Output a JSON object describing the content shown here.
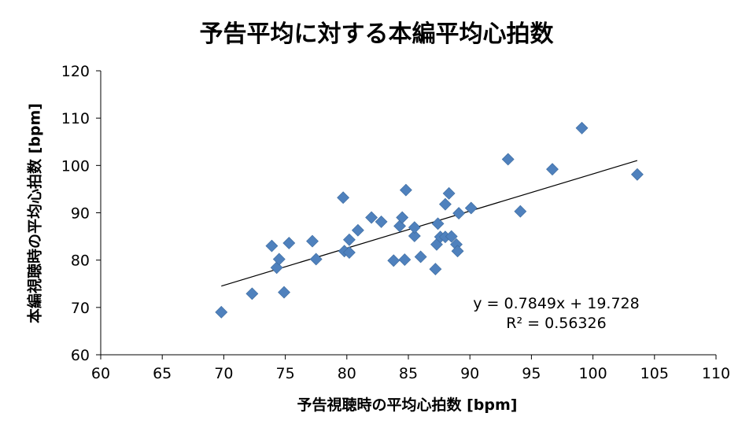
{
  "chart_data": {
    "type": "scatter",
    "title": "予告平均に対する本編平均心拍数",
    "xlabel": "予告視聴時の平均心拍数 [bpm]",
    "ylabel": "本編視聴時の平均心拍数 [bpm]",
    "xlim": [
      60,
      110
    ],
    "ylim": [
      60,
      120
    ],
    "x_ticks": [
      "60",
      "65",
      "70",
      "75",
      "80",
      "85",
      "90",
      "95",
      "100",
      "105",
      "110"
    ],
    "y_ticks": [
      "60",
      "70",
      "80",
      "90",
      "100",
      "110",
      "120"
    ],
    "grid": false,
    "legend": "none",
    "marker_color": "#4F81BD",
    "series": [
      {
        "points": [
          [
            69.8,
            69.0
          ],
          [
            72.3,
            72.9
          ],
          [
            73.9,
            83.0
          ],
          [
            74.3,
            78.4
          ],
          [
            74.5,
            80.2
          ],
          [
            74.9,
            73.2
          ],
          [
            75.3,
            83.6
          ],
          [
            77.2,
            84.0
          ],
          [
            77.5,
            80.2
          ],
          [
            79.7,
            93.2
          ],
          [
            79.8,
            81.9
          ],
          [
            80.2,
            84.3
          ],
          [
            80.2,
            81.6
          ],
          [
            80.9,
            86.3
          ],
          [
            82.0,
            89.0
          ],
          [
            82.8,
            88.1
          ],
          [
            83.8,
            79.9
          ],
          [
            84.3,
            87.2
          ],
          [
            84.5,
            89.0
          ],
          [
            84.7,
            80.1
          ],
          [
            84.8,
            94.8
          ],
          [
            85.5,
            85.1
          ],
          [
            85.5,
            86.9
          ],
          [
            86.0,
            80.7
          ],
          [
            87.2,
            78.1
          ],
          [
            87.3,
            83.3
          ],
          [
            87.4,
            87.7
          ],
          [
            87.6,
            84.9
          ],
          [
            88.0,
            91.8
          ],
          [
            88.0,
            84.9
          ],
          [
            88.3,
            94.1
          ],
          [
            88.5,
            85.0
          ],
          [
            88.9,
            83.3
          ],
          [
            89.0,
            81.9
          ],
          [
            89.1,
            89.9
          ],
          [
            90.1,
            91.0
          ],
          [
            93.1,
            101.3
          ],
          [
            94.1,
            90.3
          ],
          [
            96.7,
            99.2
          ],
          [
            99.1,
            107.9
          ],
          [
            103.6,
            98.1
          ]
        ]
      }
    ],
    "trendline": {
      "slope": 0.7849,
      "intercept": 19.728,
      "x_range": [
        69.8,
        103.6
      ],
      "color": "#000000",
      "equation": "y = 0.7849x + 19.728",
      "r2": "R² = 0.56326"
    }
  }
}
